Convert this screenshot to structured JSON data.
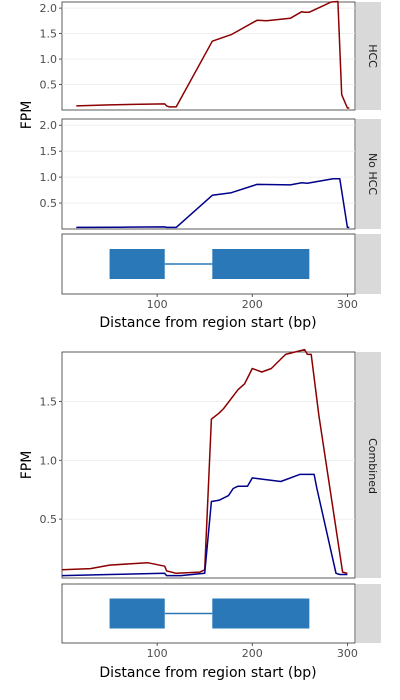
{
  "colors": {
    "hcc": "#8b0000",
    "no_hcc": "#00008b",
    "gene": "#2a78b7",
    "strip": "#d9d9d9",
    "border": "#333333",
    "grid": "#ebebeb"
  },
  "labels": {
    "ylabel": "FPM",
    "xlabel": "Distance from region start (bp)",
    "strip_hcc": "HCC",
    "strip_no_hcc": "No HCC",
    "strip_combined": "Combined"
  },
  "chart_data": [
    {
      "type": "line",
      "facet": "HCC",
      "ylabel": "FPM",
      "xlim": [
        0,
        308
      ],
      "ylim": [
        0,
        2.12
      ],
      "yticks": [
        0.5,
        1.0,
        1.5,
        2.0
      ],
      "ytick_labels": [
        "0.5",
        "1.0",
        "1.5",
        "2.0"
      ],
      "series": [
        {
          "color": "#8b0000",
          "x": [
            15,
            50,
            75,
            108,
            110,
            113,
            120,
            158,
            178,
            205,
            215,
            240,
            252,
            255,
            260,
            275,
            283,
            290,
            294,
            300,
            302
          ],
          "y": [
            0.08,
            0.1,
            0.11,
            0.12,
            0.08,
            0.06,
            0.06,
            1.35,
            1.48,
            1.76,
            1.75,
            1.8,
            1.93,
            1.92,
            1.92,
            2.05,
            2.12,
            2.13,
            0.3,
            0.04,
            0.04
          ]
        }
      ]
    },
    {
      "type": "line",
      "facet": "No HCC",
      "ylabel": "FPM",
      "xlim": [
        0,
        308
      ],
      "ylim": [
        0,
        2.12
      ],
      "yticks": [
        0.5,
        1.0,
        1.5,
        2.0
      ],
      "ytick_labels": [
        "0.5",
        "1.0",
        "1.5",
        "2.0"
      ],
      "series": [
        {
          "color": "#00008b",
          "x": [
            15,
            60,
            108,
            110,
            120,
            158,
            178,
            205,
            240,
            252,
            258,
            285,
            292,
            300,
            302
          ],
          "y": [
            0.03,
            0.035,
            0.04,
            0.03,
            0.03,
            0.65,
            0.7,
            0.86,
            0.85,
            0.89,
            0.88,
            0.97,
            0.97,
            0.03,
            0.03
          ]
        }
      ]
    },
    {
      "type": "line",
      "facet": "Combined",
      "ylabel": "FPM",
      "xlabel": "Distance from region start (bp)",
      "xlim": [
        0,
        308
      ],
      "ylim": [
        0,
        1.92
      ],
      "yticks": [
        0.5,
        1.0,
        1.5
      ],
      "ytick_labels": [
        "0.5",
        "1.0",
        "1.5"
      ],
      "series": [
        {
          "color": "#8b0000",
          "x": [
            0,
            30,
            50,
            90,
            108,
            110,
            120,
            145,
            150,
            157,
            165,
            170,
            185,
            192,
            200,
            210,
            220,
            235,
            255,
            258,
            262,
            270,
            295,
            300
          ],
          "y": [
            0.07,
            0.08,
            0.11,
            0.13,
            0.1,
            0.06,
            0.04,
            0.05,
            0.07,
            1.35,
            1.4,
            1.44,
            1.6,
            1.65,
            1.78,
            1.75,
            1.78,
            1.9,
            1.94,
            1.9,
            1.9,
            1.38,
            0.05,
            0.04
          ]
        },
        {
          "color": "#00008b",
          "x": [
            0,
            50,
            108,
            110,
            125,
            150,
            157,
            165,
            175,
            180,
            185,
            195,
            200,
            210,
            230,
            250,
            255,
            265,
            268,
            288,
            292,
            300
          ],
          "y": [
            0.02,
            0.03,
            0.04,
            0.02,
            0.02,
            0.04,
            0.65,
            0.66,
            0.7,
            0.76,
            0.78,
            0.78,
            0.85,
            0.84,
            0.82,
            0.88,
            0.88,
            0.88,
            0.76,
            0.04,
            0.03,
            0.03
          ]
        }
      ]
    },
    {
      "type": "bar",
      "facet": "gene track (top)",
      "xlabel": "Distance from region start (bp)",
      "xlim": [
        0,
        308
      ],
      "xticks": [
        100,
        200,
        300
      ],
      "xtick_labels": [
        "100",
        "200",
        "300"
      ],
      "exons": [
        [
          50,
          108
        ],
        [
          158,
          260
        ]
      ],
      "intron": [
        108,
        158
      ]
    },
    {
      "type": "bar",
      "facet": "gene track (bottom)",
      "xlabel": "Distance from region start (bp)",
      "xlim": [
        0,
        308
      ],
      "xticks": [
        100,
        200,
        300
      ],
      "xtick_labels": [
        "100",
        "200",
        "300"
      ],
      "exons": [
        [
          50,
          108
        ],
        [
          158,
          260
        ]
      ],
      "intron": [
        108,
        158
      ]
    }
  ]
}
